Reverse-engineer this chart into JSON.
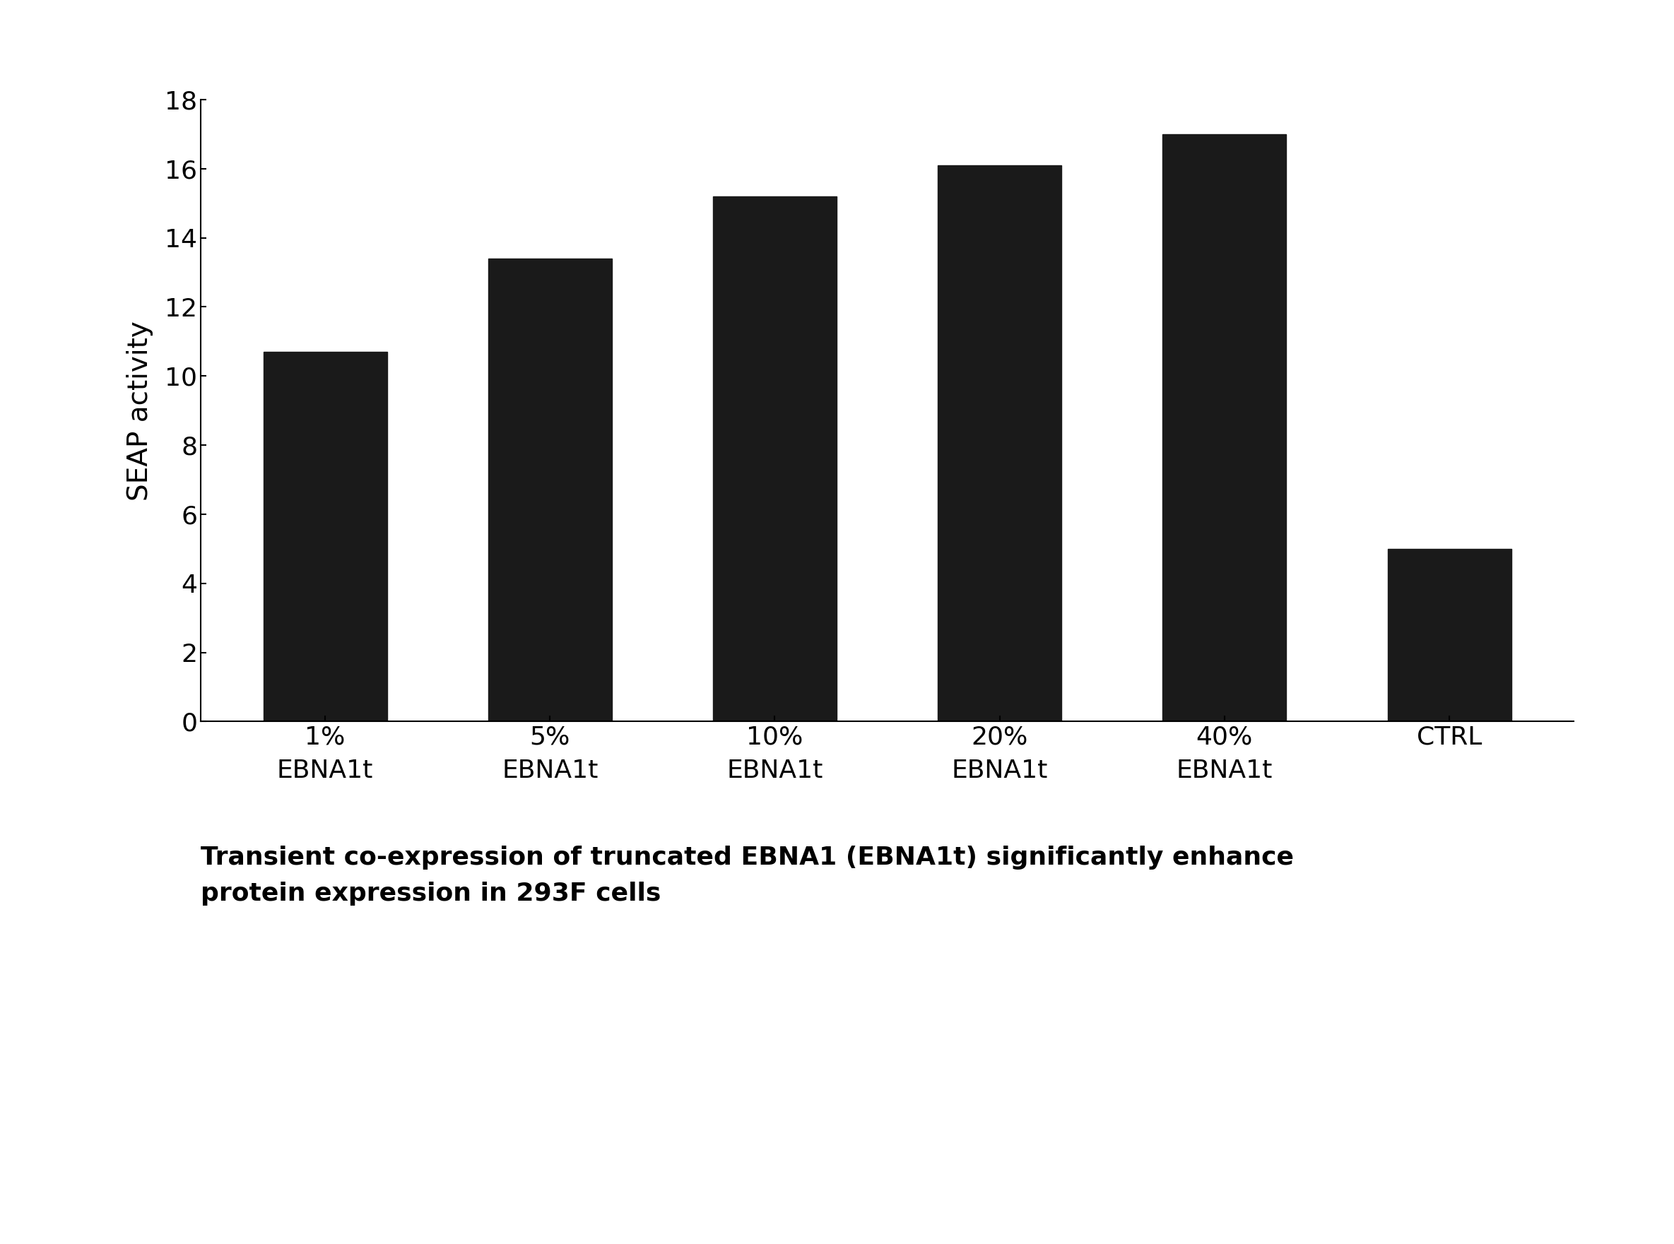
{
  "categories": [
    "1%\nEBNA1t",
    "5%\nEBNA1t",
    "10%\nEBNA1t",
    "20%\nEBNA1t",
    "40%\nEBNA1t",
    "CTRL"
  ],
  "values": [
    10.7,
    13.4,
    15.2,
    16.1,
    17.0,
    5.0
  ],
  "bar_color": "#1a1a1a",
  "ylabel": "SEAP activity",
  "ylim": [
    0,
    18
  ],
  "yticks": [
    0,
    2,
    4,
    6,
    8,
    10,
    12,
    14,
    16,
    18
  ],
  "caption_line1": "Transient co-expression of truncated EBNA1 (EBNA1t) significantly enhance",
  "caption_line2": "protein expression in 293F cells",
  "background_color": "#ffffff",
  "bar_width": 0.55,
  "axis_fontsize": 28,
  "tick_fontsize": 26,
  "caption_fontsize": 26
}
